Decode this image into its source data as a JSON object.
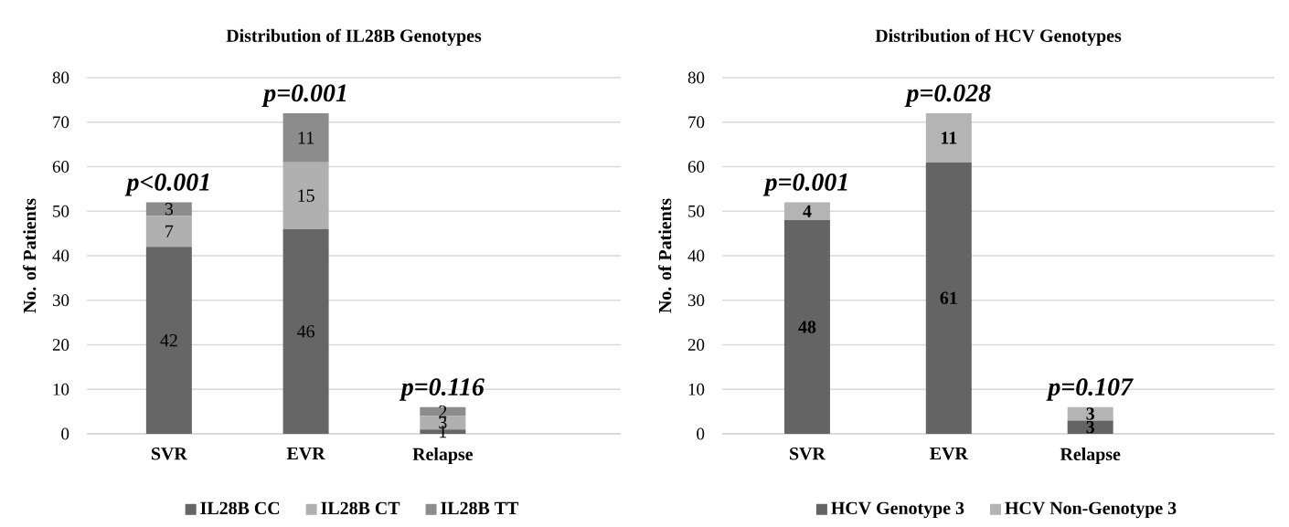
{
  "chart_data": [
    {
      "type": "bar",
      "stacked": true,
      "title": "Distribution of IL28B Genotypes",
      "ylabel": "No. of Patients",
      "categories": [
        "SVR",
        "EVR",
        "Relapse"
      ],
      "series": [
        {
          "name": "IL28B CC",
          "color": "#666666",
          "values": [
            42,
            46,
            1
          ]
        },
        {
          "name": "IL28B CT",
          "color": "#b0b0b0",
          "values": [
            7,
            15,
            3
          ]
        },
        {
          "name": "IL28B TT",
          "color": "#8c8c8c",
          "values": [
            3,
            11,
            2
          ]
        }
      ],
      "ylim": [
        0,
        80
      ],
      "yticks": [
        0,
        10,
        20,
        30,
        40,
        50,
        60,
        70,
        80
      ],
      "grid": "y",
      "legend": "bottom",
      "data_labels": true,
      "annotations": [
        "p<0.001",
        "p=0.001",
        "p=0.116"
      ]
    },
    {
      "type": "bar",
      "stacked": true,
      "title": "Distribution of HCV Genotypes",
      "ylabel": "No. of Patients",
      "categories": [
        "SVR",
        "EVR",
        "Relapse"
      ],
      "series": [
        {
          "name": "HCV Genotype 3",
          "color": "#646464",
          "values": [
            48,
            61,
            3
          ]
        },
        {
          "name": "HCV Non-Genotype 3",
          "color": "#b4b4b4",
          "values": [
            4,
            11,
            3
          ]
        }
      ],
      "ylim": [
        0,
        80
      ],
      "yticks": [
        0,
        10,
        20,
        30,
        40,
        50,
        60,
        70,
        80
      ],
      "grid": "y",
      "legend": "bottom",
      "data_labels": true,
      "annotations": [
        "p=0.001",
        "p=0.028",
        "p=0.107"
      ]
    }
  ]
}
